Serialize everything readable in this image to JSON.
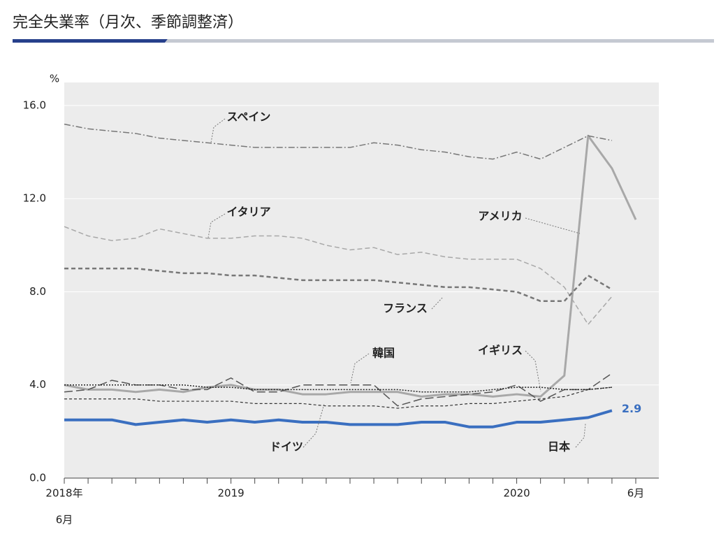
{
  "chart_data": {
    "type": "line",
    "title": "完全失業率（月次、季節調整済）",
    "y_unit": "%",
    "categories": [
      "2018年",
      null,
      null,
      null,
      null,
      null,
      null,
      "2019",
      null,
      null,
      null,
      null,
      null,
      null,
      null,
      null,
      null,
      null,
      null,
      "2020",
      null,
      null,
      null,
      null,
      "6月"
    ],
    "start_month_label": "6月",
    "ylim": [
      0,
      17.5
    ],
    "yticks": [
      {
        "value": 0,
        "label": "0.0"
      },
      {
        "value": 4,
        "label": "4.0"
      },
      {
        "value": 8,
        "label": "8.0"
      },
      {
        "value": 12,
        "label": "12.0"
      },
      {
        "value": 16,
        "label": "16.0"
      }
    ],
    "grid": true,
    "series": [
      {
        "name": "日本",
        "color": "#3a6fc0",
        "width": 4,
        "dash": "none",
        "values": [
          2.5,
          2.5,
          2.5,
          2.3,
          2.4,
          2.5,
          2.4,
          2.5,
          2.4,
          2.5,
          2.4,
          2.4,
          2.3,
          2.3,
          2.3,
          2.4,
          2.4,
          2.2,
          2.2,
          2.4,
          2.4,
          2.5,
          2.6,
          2.9,
          null
        ]
      },
      {
        "name": "アメリカ",
        "color": "#a8a8a8",
        "width": 3,
        "dash": "none",
        "values": [
          4.0,
          3.8,
          3.8,
          3.7,
          3.8,
          3.7,
          3.9,
          4.0,
          3.8,
          3.8,
          3.6,
          3.6,
          3.7,
          3.7,
          3.7,
          3.5,
          3.6,
          3.6,
          3.5,
          3.6,
          3.5,
          4.4,
          14.7,
          13.3,
          11.1
        ]
      },
      {
        "name": "スペイン",
        "color": "#777777",
        "width": 1.5,
        "dash": "9 3 2 3",
        "values": [
          15.2,
          15.0,
          14.9,
          14.8,
          14.6,
          14.5,
          14.4,
          14.3,
          14.2,
          14.2,
          14.2,
          14.2,
          14.2,
          14.4,
          14.3,
          14.1,
          14.0,
          13.8,
          13.7,
          14.0,
          13.7,
          14.2,
          14.7,
          14.5,
          null
        ]
      },
      {
        "name": "イタリア",
        "color": "#a8a8a8",
        "width": 1.5,
        "dash": "7 4",
        "values": [
          10.8,
          10.4,
          10.2,
          10.3,
          10.7,
          10.5,
          10.3,
          10.3,
          10.4,
          10.4,
          10.3,
          10.0,
          9.8,
          9.9,
          9.6,
          9.7,
          9.5,
          9.4,
          9.4,
          9.4,
          9.0,
          8.2,
          6.6,
          7.8,
          null
        ]
      },
      {
        "name": "フランス",
        "color": "#777777",
        "width": 2.5,
        "dash": "6 4",
        "values": [
          9.0,
          9.0,
          9.0,
          9.0,
          8.9,
          8.8,
          8.8,
          8.7,
          8.7,
          8.6,
          8.5,
          8.5,
          8.5,
          8.5,
          8.4,
          8.3,
          8.2,
          8.2,
          8.1,
          8.0,
          7.6,
          7.6,
          8.7,
          8.1,
          null
        ]
      },
      {
        "name": "韓国",
        "color": "#555555",
        "width": 1.5,
        "dash": "12 5",
        "values": [
          3.7,
          3.8,
          4.2,
          4.0,
          4.0,
          3.8,
          3.8,
          4.3,
          3.7,
          3.7,
          4.0,
          4.0,
          4.0,
          4.0,
          3.1,
          3.4,
          3.5,
          3.6,
          3.7,
          4.0,
          3.3,
          3.8,
          3.8,
          4.5,
          null
        ]
      },
      {
        "name": "イギリス",
        "color": "#222222",
        "width": 1.5,
        "dash": "2 2",
        "values": [
          4.0,
          4.0,
          4.0,
          4.0,
          4.0,
          4.0,
          3.9,
          3.9,
          3.8,
          3.8,
          3.8,
          3.8,
          3.8,
          3.8,
          3.8,
          3.7,
          3.7,
          3.7,
          3.8,
          3.9,
          3.9,
          3.8,
          3.8,
          3.9,
          null
        ]
      },
      {
        "name": "ドイツ",
        "color": "#333333",
        "width": 1.2,
        "dash": "4 3",
        "values": [
          3.4,
          3.4,
          3.4,
          3.4,
          3.3,
          3.3,
          3.3,
          3.3,
          3.2,
          3.2,
          3.2,
          3.1,
          3.1,
          3.1,
          3.0,
          3.1,
          3.1,
          3.2,
          3.2,
          3.3,
          3.4,
          3.5,
          3.8,
          3.9,
          null
        ]
      }
    ]
  }
}
